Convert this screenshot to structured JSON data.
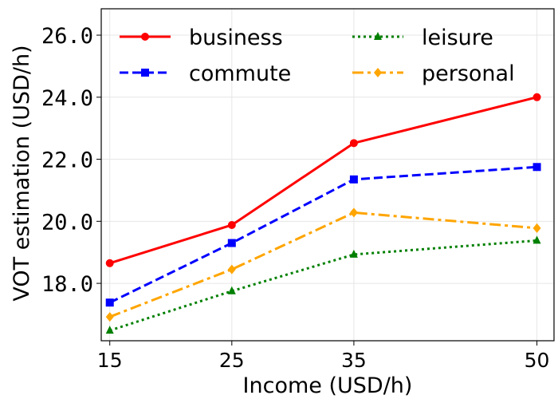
{
  "chart_data": {
    "type": "line",
    "xlabel": "Income (USD/h)",
    "ylabel": "VOT estimation (USD/h)",
    "x": [
      15,
      25,
      35,
      50
    ],
    "x_tick_labels": [
      "15",
      "25",
      "35",
      "50"
    ],
    "y_ticks": [
      18.0,
      20.0,
      22.0,
      24.0,
      26.0
    ],
    "y_tick_labels": [
      "18.0",
      "20.0",
      "22.0",
      "24.0",
      "26.0"
    ],
    "xlim": [
      14.3,
      51.4
    ],
    "ylim": [
      16.15,
      26.85
    ],
    "grid": true,
    "legend_placement": "top",
    "series": [
      {
        "name": "business",
        "values": [
          18.65,
          19.88,
          22.52,
          24.0
        ],
        "color": "#ff0000",
        "marker": "circle",
        "linestyle": "solid"
      },
      {
        "name": "commute",
        "values": [
          17.38,
          19.3,
          21.35,
          21.75
        ],
        "color": "#0000ff",
        "marker": "square",
        "linestyle": "dashed"
      },
      {
        "name": "leisure",
        "values": [
          16.48,
          17.75,
          18.93,
          19.38
        ],
        "color": "#008000",
        "marker": "triangle",
        "linestyle": "dotted"
      },
      {
        "name": "personal",
        "values": [
          16.92,
          18.45,
          20.28,
          19.78
        ],
        "color": "#ffa500",
        "marker": "diamond",
        "linestyle": "dashdot"
      }
    ]
  }
}
